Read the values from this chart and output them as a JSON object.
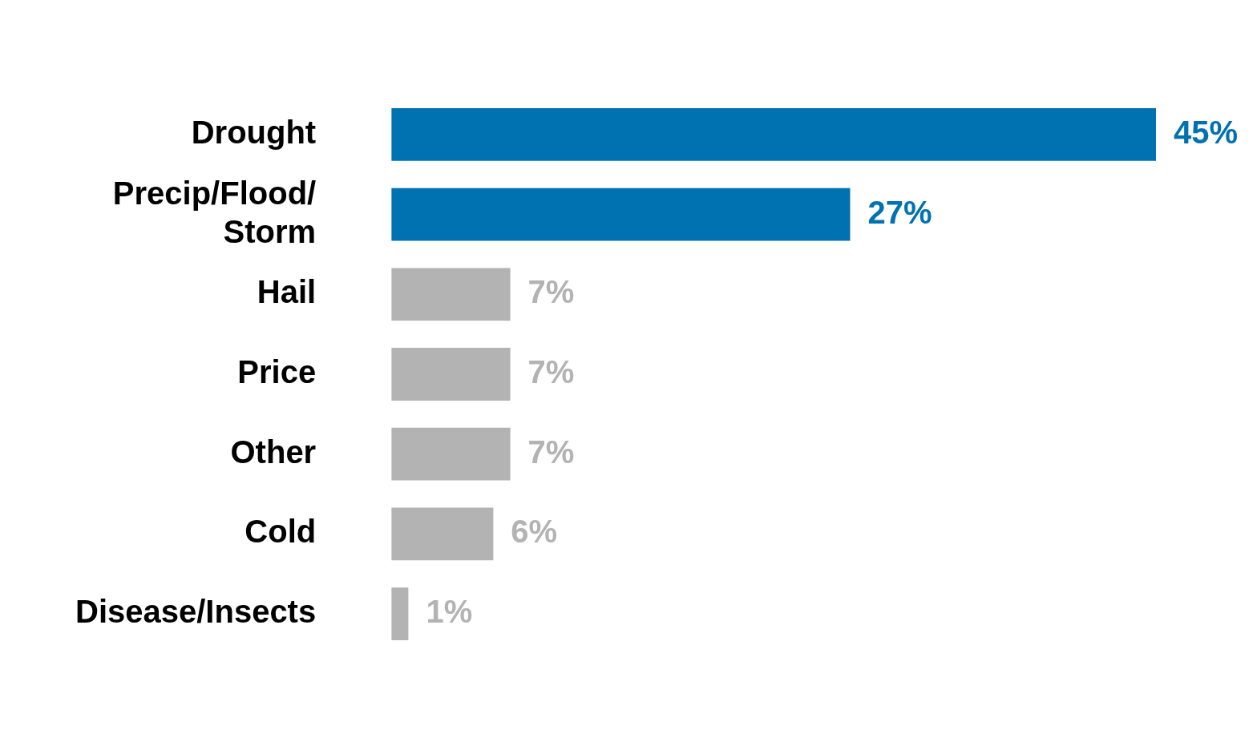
{
  "chart_data": {
    "type": "bar",
    "orientation": "horizontal",
    "categories": [
      "Drought",
      "Precip/Flood/Storm",
      "Hail",
      "Price",
      "Other",
      "Cold",
      "Disease/Insects"
    ],
    "values": [
      45,
      27,
      7,
      7,
      7,
      6,
      1
    ],
    "colors": [
      "#0072b2",
      "#0072b2",
      "#b3b3b3",
      "#b3b3b3",
      "#b3b3b3",
      "#b3b3b3",
      "#b3b3b3"
    ],
    "value_labels": [
      "45%",
      "27%",
      "7%",
      "7%",
      "7%",
      "6%",
      "1%"
    ],
    "xlim": [
      0,
      45
    ],
    "tick_labels": "y",
    "legend": false
  }
}
